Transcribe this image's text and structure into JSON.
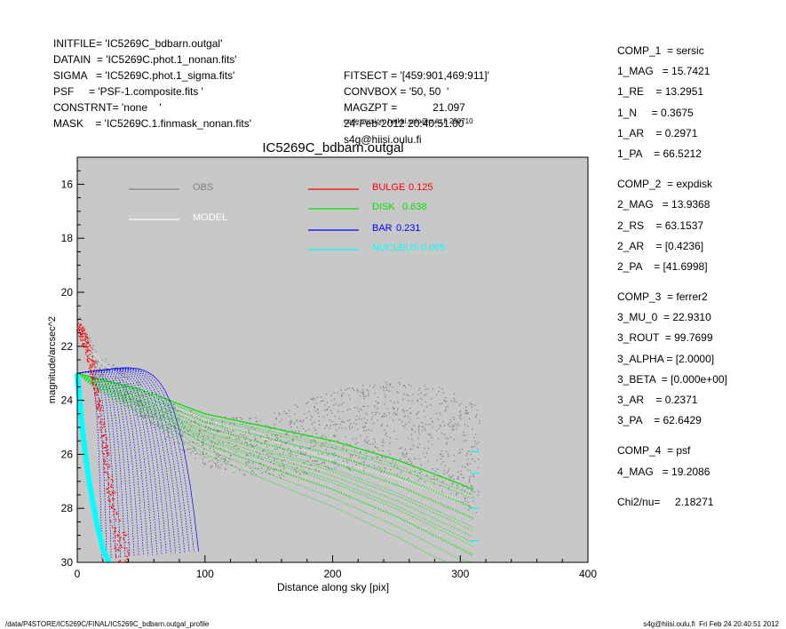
{
  "header_left": [
    "INITFILE= 'IC5269C_bdbarn.outgal'",
    "DATAIN  = 'IC5269C.phot.1_nonan.fits'",
    "SIGMA   = 'IC5269C.phot.1_sigma.fits'",
    "PSF     = 'PSF-1.composite.fits '",
    "CONSTRNT= 'none    '",
    "MASK    = 'IC5269C.1.finmask_nonan.fits'"
  ],
  "header_mid": [
    "FITSECT = '[459:901,469:911]'",
    "CONVBOX = '50, 50  '",
    "MAGZPT =            21.097",
    "24-Feb-2012 20:40:51.00",
    "s4g@hiisi.oulu.fi"
  ],
  "code_version": "code version: heikki.salo@oulu.fi 290710",
  "params": [
    {
      "label": "COMP_1  = sersic"
    },
    {
      "label": "1_MAG   = 15.7421"
    },
    {
      "label": "1_RE    = 13.2951"
    },
    {
      "label": "1_N     = 0.3675"
    },
    {
      "label": "1_AR    = 0.2971"
    },
    {
      "label": "1_PA    = 66.5212"
    },
    {
      "gap": true
    },
    {
      "label": "COMP_2  = expdisk"
    },
    {
      "label": "2_MAG   = 13.9368"
    },
    {
      "label": "2_RS    = 63.1537"
    },
    {
      "label": "2_AR    = [0.4236]"
    },
    {
      "label": "2_PA    = [41.6998]"
    },
    {
      "gap": true
    },
    {
      "label": "COMP_3  = ferrer2"
    },
    {
      "label": "3_MU_0  = 22.9310"
    },
    {
      "label": "3_ROUT  = 99.7699"
    },
    {
      "label": "3_ALPHA = [2.0000]"
    },
    {
      "label": "3_BETA  = [0.000e+00]"
    },
    {
      "label": "3_AR    = 0.2371"
    },
    {
      "label": "3_PA    = 62.6429"
    },
    {
      "gap": true
    },
    {
      "label": "COMP_4  = psf"
    },
    {
      "label": "4_MAG   = 19.2086"
    },
    {
      "gap": true
    },
    {
      "label": "Chi2/nu=     2.18271"
    }
  ],
  "footer_left": "/data/P4STORE/IC5269C/FINAL/IC5269C_bdbarn.outgal_profile",
  "footer_right": "s4g@hiisi.oulu.fi  Fri Feb 24 20:40:51 2012",
  "colors": {
    "plot_bg": "#c8c8c8",
    "obs": "#808080",
    "model": "#ffffff",
    "bulge": "#ff0000",
    "disk": "#00e000",
    "bar": "#0000ff",
    "nucleus": "#00ffff"
  },
  "chart_data": {
    "type": "scatter",
    "title": "IC5269C_bdbarn.outgal",
    "xlabel": "Distance along sky [pix]",
    "ylabel": "magnitude/arcsec^2",
    "xlim": [
      0,
      400
    ],
    "ylim": [
      30,
      15
    ],
    "y_inverted": true,
    "x_ticks": [
      "0",
      "100",
      "200",
      "300",
      "400"
    ],
    "y_ticks": [
      "16",
      "18",
      "20",
      "22",
      "24",
      "26",
      "28",
      "30"
    ],
    "grid": false,
    "legend": [
      {
        "name": "OBS",
        "key": "obs"
      },
      {
        "name": "MODEL",
        "key": "model"
      },
      {
        "name": "BULGE",
        "value": "0.125",
        "key": "bulge"
      },
      {
        "name": "DISK",
        "value": "0.638",
        "key": "disk"
      },
      {
        "name": "BAR",
        "value": "0.231",
        "key": "bar"
      },
      {
        "name": "NUCLEUS",
        "value": "0.005",
        "key": "nucleus"
      }
    ],
    "series": [
      {
        "key": "obs",
        "x": [
          0,
          2,
          4,
          8,
          12,
          20,
          30,
          45,
          60,
          80,
          100,
          130,
          160,
          190,
          220,
          250,
          280,
          300,
          310
        ],
        "y": [
          21.0,
          21.3,
          21.5,
          22.0,
          22.3,
          22.8,
          23.3,
          23.9,
          24.4,
          25.0,
          25.5,
          25.7,
          25.6,
          25.2,
          25.0,
          25.0,
          25.3,
          25.8,
          26.2
        ]
      },
      {
        "key": "model",
        "x": [
          0,
          5,
          10,
          20,
          30,
          40,
          60,
          80,
          100,
          130,
          160,
          200,
          250,
          300,
          310
        ],
        "y": [
          21.5,
          21.8,
          22.1,
          22.6,
          23.0,
          23.3,
          23.8,
          24.3,
          24.7,
          25.2,
          25.6,
          26.2,
          26.9,
          27.7,
          27.9
        ]
      },
      {
        "key": "bulge",
        "x": [
          0,
          5,
          10,
          15,
          20,
          25,
          30,
          35,
          40
        ],
        "y": [
          21.2,
          21.5,
          22.2,
          23.4,
          25.0,
          26.8,
          28.3,
          29.5,
          30.0
        ]
      },
      {
        "key": "disk",
        "x": [
          0,
          50,
          100,
          150,
          200,
          250,
          300,
          310
        ],
        "y": [
          23.0,
          23.6,
          24.5,
          25.0,
          25.5,
          26.2,
          27.1,
          27.3
        ]
      },
      {
        "key": "bar",
        "x": [
          0,
          20,
          40,
          60,
          80,
          90,
          95
        ],
        "y": [
          23.0,
          23.0,
          23.3,
          24.0,
          25.7,
          27.5,
          30.0
        ]
      },
      {
        "key": "nucleus",
        "x": [
          0,
          3,
          6,
          10,
          15,
          20,
          25
        ],
        "y": [
          23.0,
          24.6,
          25.9,
          27.2,
          28.5,
          29.5,
          30.0
        ]
      }
    ],
    "sigma_ticks_y": [
      25.9,
      26.7,
      28.0,
      29.2
    ]
  }
}
